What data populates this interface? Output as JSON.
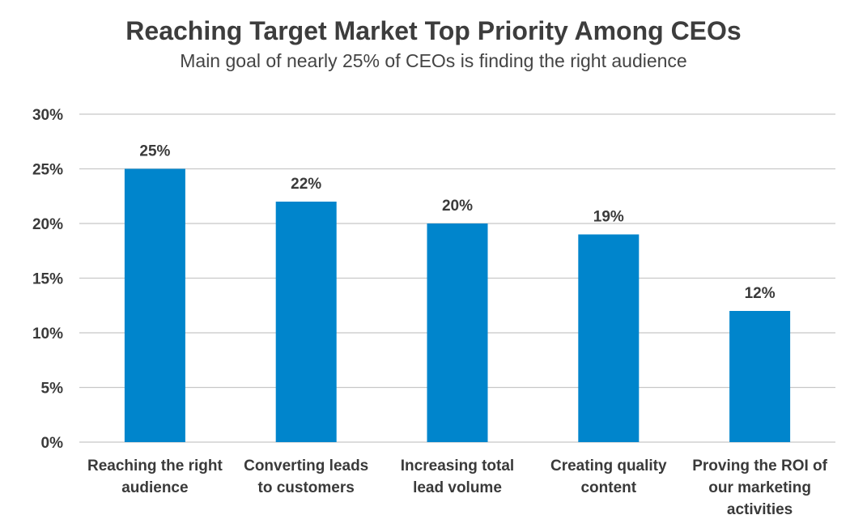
{
  "chart_data": {
    "type": "bar",
    "title": "Reaching Target Market Top Priority Among CEOs",
    "subtitle": "Main goal of nearly 25% of CEOs is finding the right audience",
    "categories": [
      [
        "Reaching the right",
        "audience"
      ],
      [
        "Converting leads",
        "to customers"
      ],
      [
        "Increasing total",
        "lead volume"
      ],
      [
        "Creating quality",
        "content"
      ],
      [
        "Proving the ROI of",
        "our marketing",
        "activities"
      ]
    ],
    "values": [
      25,
      22,
      20,
      19,
      12
    ],
    "data_labels": [
      "25%",
      "22%",
      "20%",
      "19%",
      "12%"
    ],
    "y_ticks": [
      "0%",
      "5%",
      "10%",
      "15%",
      "20%",
      "25%",
      "30%"
    ],
    "ylim": [
      0,
      30
    ],
    "grid": true,
    "bar_color": "#0085cc",
    "grid_color": "#c8c8c8"
  }
}
